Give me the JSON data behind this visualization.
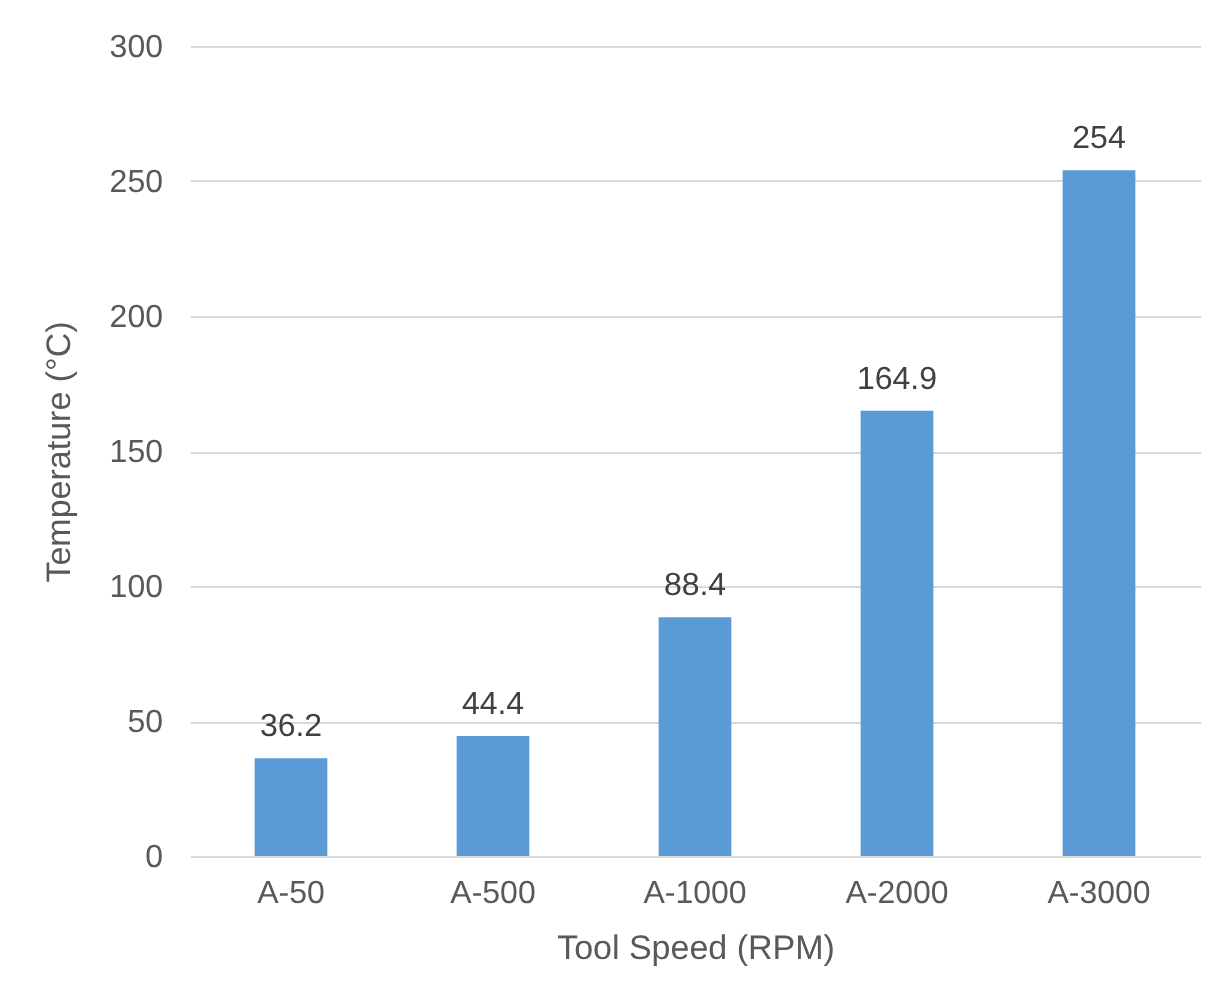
{
  "chart_data": {
    "type": "bar",
    "xlabel": "Tool Speed (RPM)",
    "ylabel": "Temperature (°C)",
    "categories": [
      "A-50",
      "A-500",
      "A-1000",
      "A-2000",
      "A-3000"
    ],
    "values": [
      36.2,
      44.4,
      88.4,
      164.9,
      254
    ],
    "color": "#5b9bd5",
    "ylim": [
      0,
      300
    ],
    "yticks": [
      0,
      50,
      100,
      150,
      200,
      250,
      300
    ],
    "grid": "y",
    "data_labels": true
  }
}
